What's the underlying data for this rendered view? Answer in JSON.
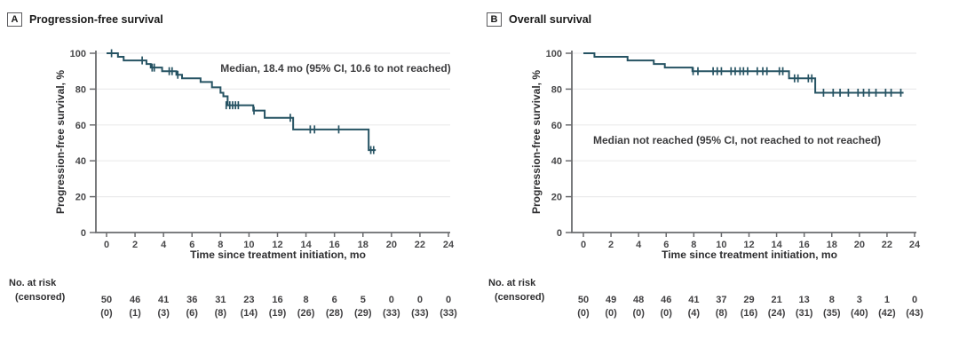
{
  "colors": {
    "curve": "#265363",
    "axis": "#6a6b6e",
    "grid": "#ebebec",
    "tick_text": "#48484a",
    "risk_text": "#414042"
  },
  "chart_data": [
    {
      "panel": "A",
      "type": "line",
      "subtype": "kaplan-meier-step",
      "title": "Progression-free survival",
      "annotation": "Median, 18.4 mo (95% CI, 10.6 to not reached)",
      "ylabel": "Progression-free survival, %",
      "xlabel": "Time since treatment initiation, mo",
      "xlim": [
        0,
        24
      ],
      "ylim": [
        0,
        100
      ],
      "xticks": [
        0,
        2,
        4,
        6,
        8,
        10,
        12,
        14,
        16,
        18,
        20,
        22,
        24
      ],
      "yticks": [
        0,
        20,
        40,
        60,
        80,
        100
      ],
      "grid": "horizontal-light",
      "km_steps": [
        [
          0,
          100
        ],
        [
          0.8,
          98
        ],
        [
          1.2,
          96
        ],
        [
          2.8,
          94
        ],
        [
          3.1,
          92
        ],
        [
          3.9,
          90
        ],
        [
          4.9,
          88
        ],
        [
          5.3,
          86
        ],
        [
          6.6,
          84
        ],
        [
          7.4,
          81
        ],
        [
          8.0,
          78
        ],
        [
          8.2,
          76
        ],
        [
          8.5,
          71
        ],
        [
          10.3,
          68
        ],
        [
          11.1,
          64
        ],
        [
          13.1,
          57.5
        ],
        [
          18.4,
          46
        ]
      ],
      "curve_end": 18.9,
      "censor_marks": [
        [
          0.35,
          100
        ],
        [
          2.5,
          96
        ],
        [
          3.2,
          92
        ],
        [
          3.35,
          92
        ],
        [
          4.4,
          90
        ],
        [
          4.6,
          90
        ],
        [
          5.0,
          88
        ],
        [
          8.4,
          71
        ],
        [
          8.65,
          71
        ],
        [
          8.85,
          71
        ],
        [
          9.05,
          71
        ],
        [
          9.25,
          71
        ],
        [
          10.35,
          68
        ],
        [
          12.9,
          64
        ],
        [
          14.3,
          57.5
        ],
        [
          14.6,
          57.5
        ],
        [
          16.3,
          57.5
        ],
        [
          18.55,
          46
        ],
        [
          18.75,
          46
        ]
      ],
      "at_risk": {
        "label": "No. at risk",
        "sublabel": "(censored)",
        "times": [
          0,
          2,
          4,
          6,
          8,
          10,
          12,
          14,
          16,
          18,
          20,
          22,
          24
        ],
        "n": [
          "50",
          "46",
          "41",
          "36",
          "31",
          "23",
          "16",
          "8",
          "6",
          "5",
          "0",
          "0",
          "0"
        ],
        "censored": [
          "(0)",
          "(1)",
          "(3)",
          "(6)",
          "(8)",
          "(14)",
          "(19)",
          "(26)",
          "(28)",
          "(29)",
          "(33)",
          "(33)",
          "(33)"
        ]
      }
    },
    {
      "panel": "B",
      "type": "line",
      "subtype": "kaplan-meier-step",
      "title": "Overall survival",
      "annotation": "Median not reached (95% CI, not reached to not reached)",
      "ylabel": "Progression-free survival, %",
      "xlabel": "Time since treatment initiation, mo",
      "xlim": [
        0,
        24
      ],
      "ylim": [
        0,
        100
      ],
      "xticks": [
        0,
        2,
        4,
        6,
        8,
        10,
        12,
        14,
        16,
        18,
        20,
        22,
        24
      ],
      "yticks": [
        0,
        20,
        40,
        60,
        80,
        100
      ],
      "grid": "horizontal-light",
      "km_steps": [
        [
          0,
          100
        ],
        [
          0.8,
          98
        ],
        [
          3.2,
          96
        ],
        [
          5.1,
          94
        ],
        [
          5.9,
          92
        ],
        [
          7.9,
          90
        ],
        [
          14.9,
          86
        ],
        [
          16.8,
          78
        ]
      ],
      "curve_end": 23.2,
      "censor_marks": [
        [
          7.95,
          90
        ],
        [
          8.3,
          90
        ],
        [
          9.4,
          90
        ],
        [
          9.7,
          90
        ],
        [
          10.0,
          90
        ],
        [
          10.7,
          90
        ],
        [
          11.0,
          90
        ],
        [
          11.35,
          90
        ],
        [
          11.6,
          90
        ],
        [
          11.9,
          90
        ],
        [
          12.6,
          90
        ],
        [
          13.0,
          90
        ],
        [
          13.3,
          90
        ],
        [
          14.2,
          90
        ],
        [
          14.45,
          90
        ],
        [
          15.3,
          86
        ],
        [
          15.55,
          86
        ],
        [
          16.3,
          86
        ],
        [
          16.55,
          86
        ],
        [
          17.4,
          78
        ],
        [
          18.1,
          78
        ],
        [
          18.6,
          78
        ],
        [
          19.2,
          78
        ],
        [
          19.9,
          78
        ],
        [
          20.3,
          78
        ],
        [
          20.7,
          78
        ],
        [
          21.2,
          78
        ],
        [
          21.9,
          78
        ],
        [
          22.3,
          78
        ],
        [
          23.0,
          78
        ]
      ],
      "at_risk": {
        "label": "No. at risk",
        "sublabel": "(censored)",
        "times": [
          0,
          2,
          4,
          6,
          8,
          10,
          12,
          14,
          16,
          18,
          20,
          22,
          24
        ],
        "n": [
          "50",
          "49",
          "48",
          "46",
          "41",
          "37",
          "29",
          "21",
          "13",
          "8",
          "3",
          "1",
          "0"
        ],
        "censored": [
          "(0)",
          "(0)",
          "(0)",
          "(0)",
          "(4)",
          "(8)",
          "(16)",
          "(24)",
          "(31)",
          "(35)",
          "(40)",
          "(42)",
          "(43)"
        ]
      }
    }
  ]
}
